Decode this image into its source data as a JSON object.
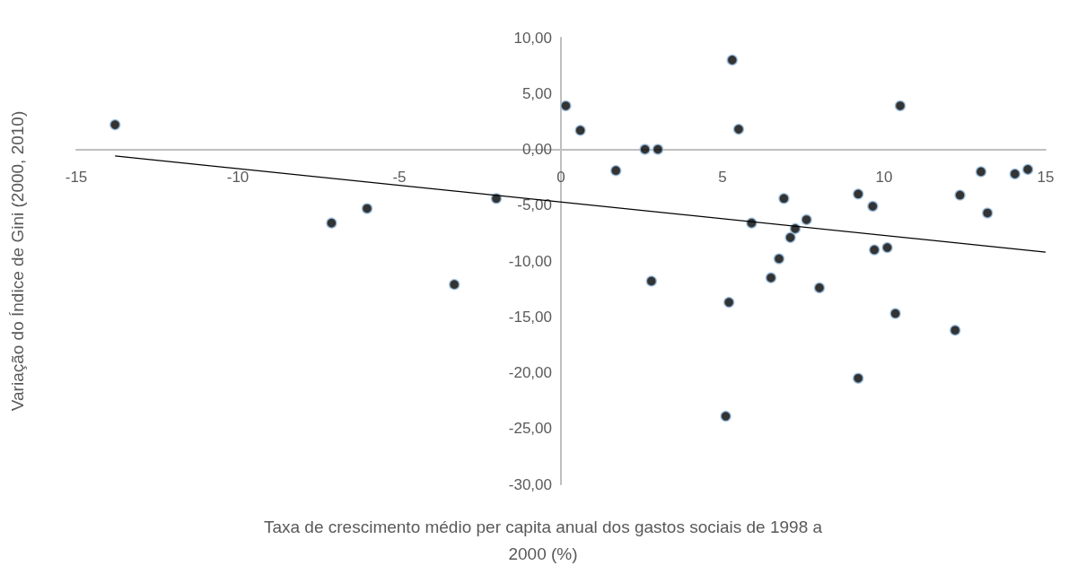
{
  "chart_data": {
    "type": "scatter",
    "xlabel": "Taxa de crescimento médio per capita anual dos gastos sociais de 1998 a 2000 (%)",
    "ylabel": "Variação do Índice de Gini (2000, 2010)",
    "xlim": [
      -15,
      15
    ],
    "xticks": [
      -15,
      -10,
      -5,
      0,
      5,
      10,
      15
    ],
    "ylim": [
      -30,
      10
    ],
    "yticks": [
      {
        "value": -30,
        "label": "-30,00"
      },
      {
        "value": -25,
        "label": "-25,00"
      },
      {
        "value": -20,
        "label": "-20,00"
      },
      {
        "value": -15,
        "label": "-15,00"
      },
      {
        "value": -10,
        "label": "-10,00"
      },
      {
        "value": -5,
        "label": "-5,00"
      },
      {
        "value": 0,
        "label": "0,00"
      },
      {
        "value": 5,
        "label": "5,00"
      },
      {
        "value": 10,
        "label": "10,00"
      }
    ],
    "series": [
      {
        "marker": "circle",
        "color": "#000000",
        "x": [
          -13.8,
          -7.1,
          -6.0,
          -3.3,
          -2.0,
          0.15,
          0.6,
          1.7,
          2.6,
          3.0,
          2.8,
          5.3,
          5.5,
          5.2,
          5.1,
          5.9,
          6.9,
          6.5,
          6.75,
          7.1,
          7.25,
          7.6,
          8.0,
          9.2,
          9.65,
          9.7,
          10.1,
          10.5,
          10.35,
          9.2,
          12.35,
          13.2,
          13.0,
          14.05,
          14.45,
          12.2
        ],
        "values": [
          2.2,
          -6.6,
          -5.3,
          -12.1,
          -4.4,
          3.9,
          1.7,
          -1.9,
          0,
          0,
          -11.8,
          8.0,
          1.8,
          -13.7,
          -23.9,
          -6.6,
          -4.4,
          -11.5,
          -9.8,
          -7.9,
          -7.1,
          -6.3,
          -12.4,
          -4.0,
          -5.1,
          -9.0,
          -8.8,
          3.9,
          -14.7,
          -20.5,
          -4.1,
          -5.7,
          -2.0,
          -2.2,
          -1.8,
          -16.2
        ]
      },
      {
        "type": "line",
        "marker": "none",
        "color": "#000000",
        "x": [
          -13.8,
          15
        ],
        "values": [
          -0.6,
          -9.2
        ]
      }
    ]
  }
}
